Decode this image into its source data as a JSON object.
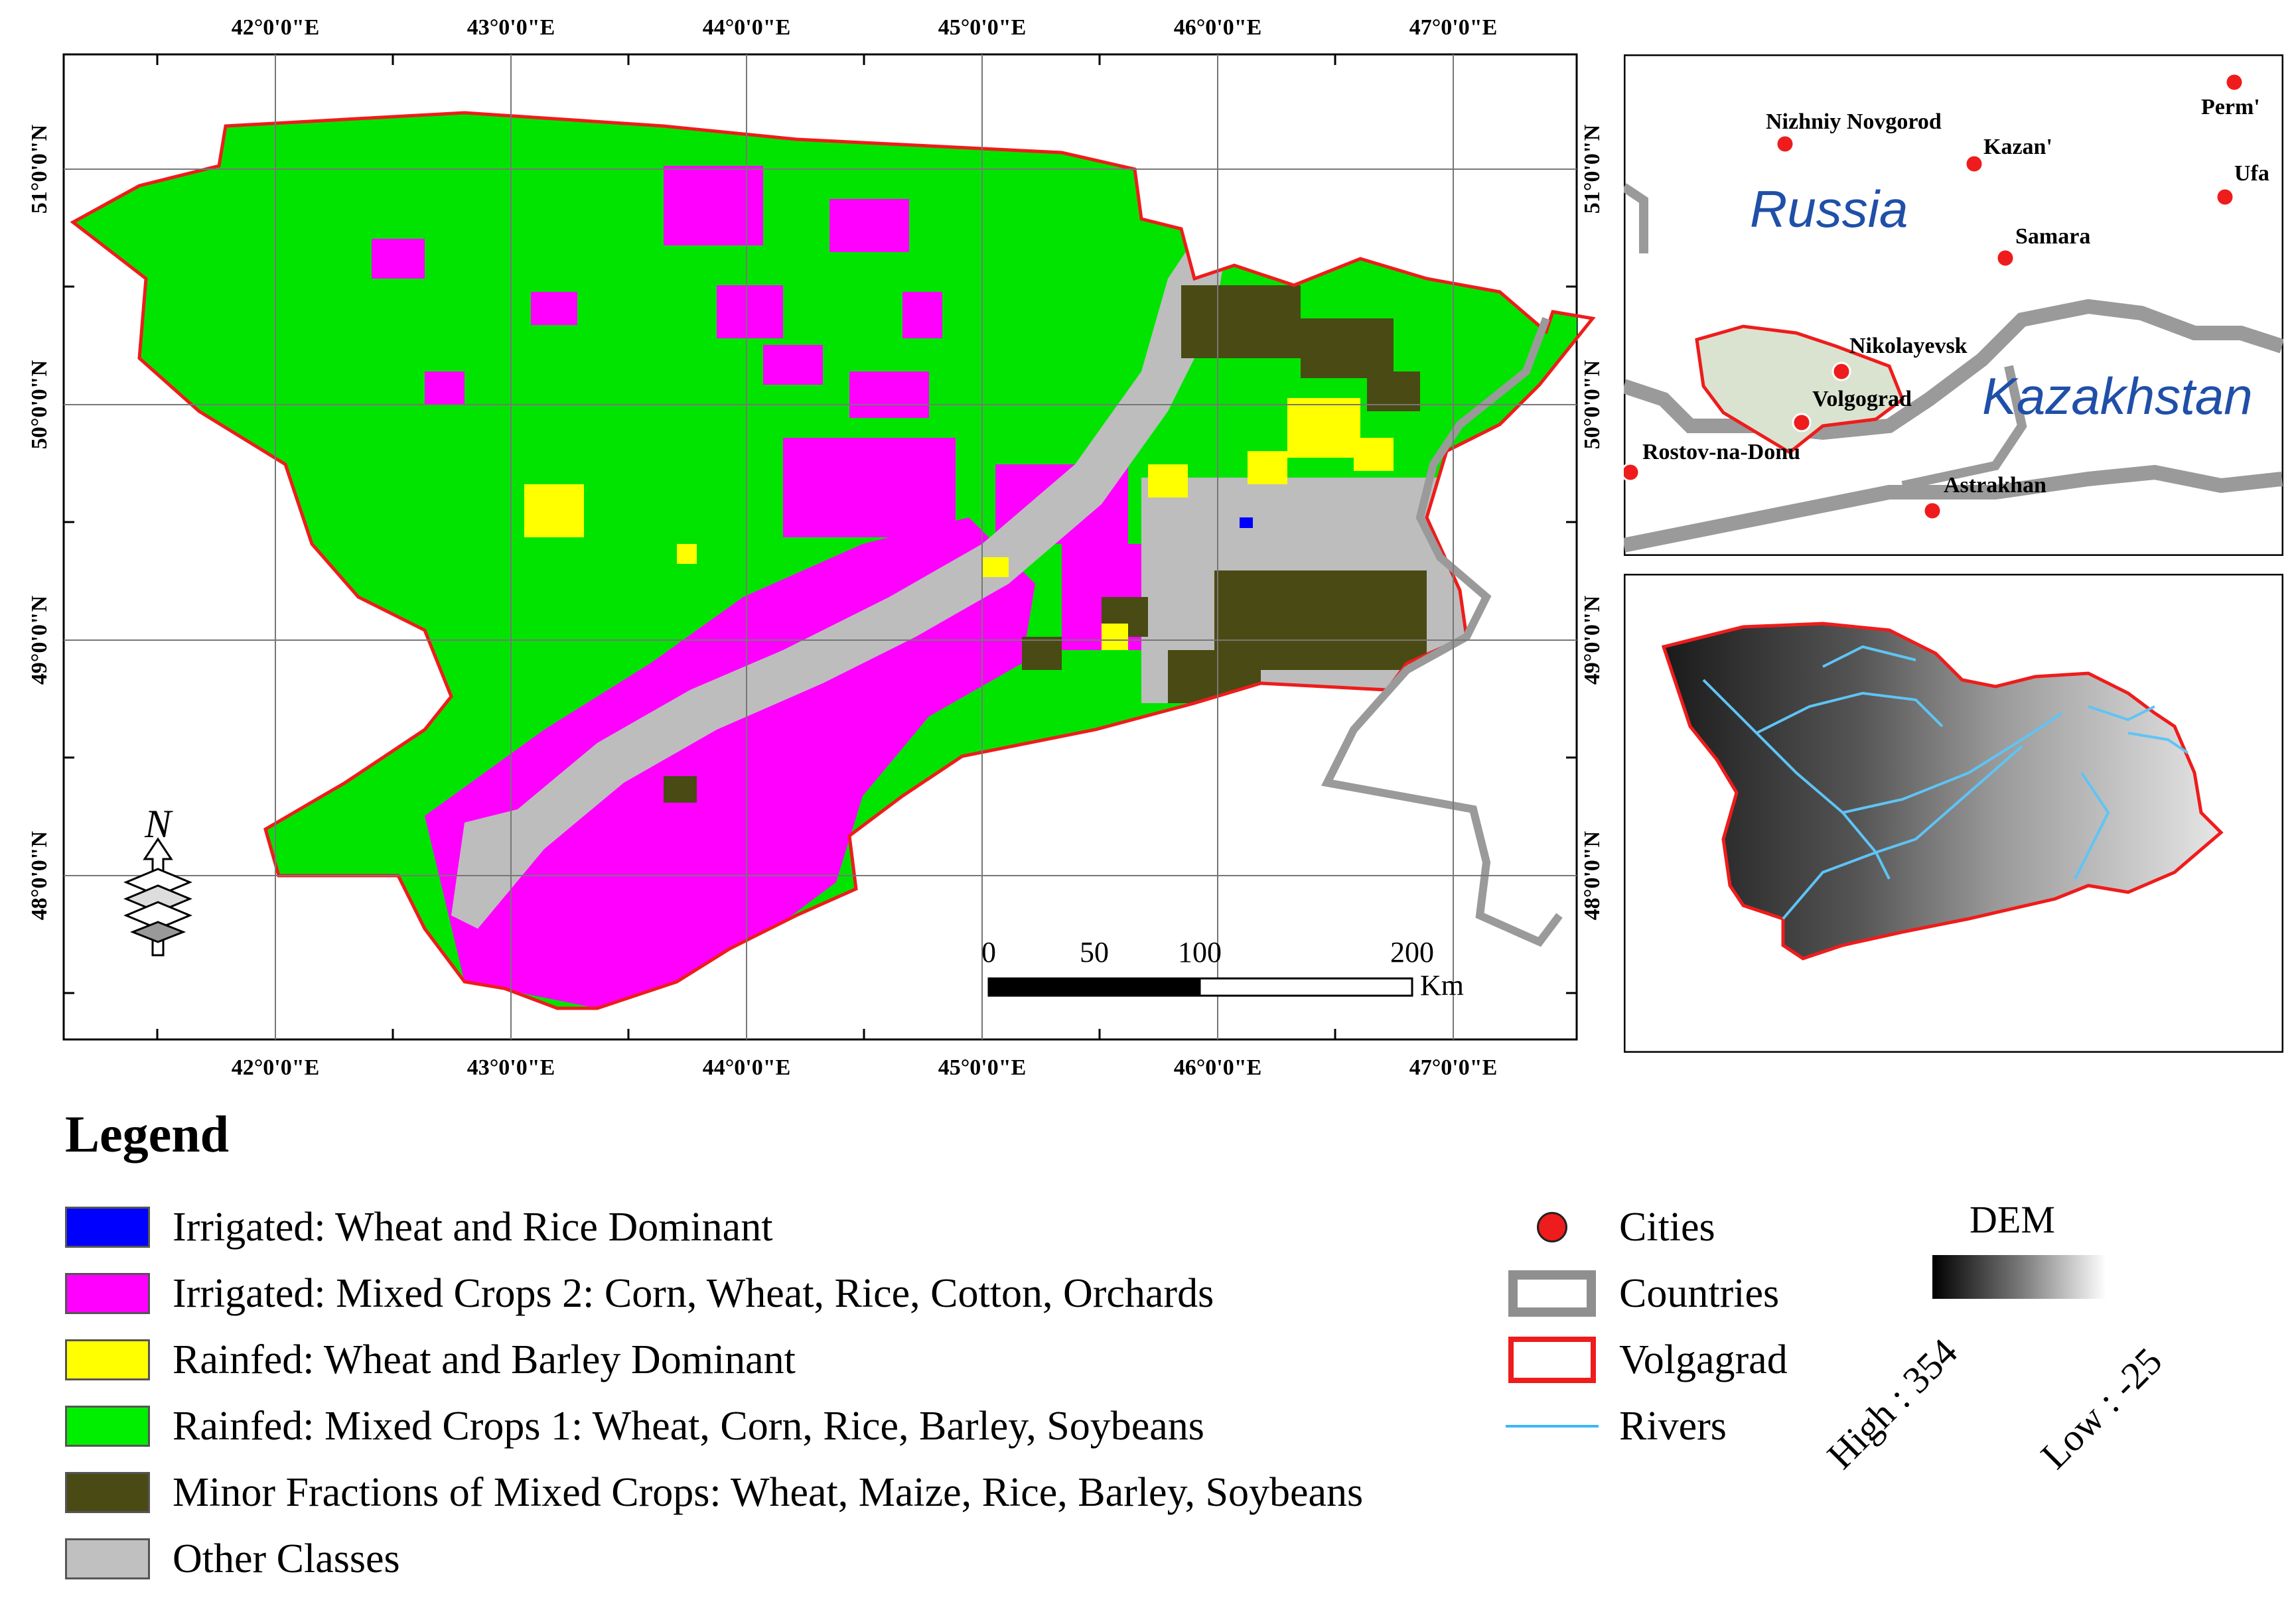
{
  "map": {
    "top_lon_labels": [
      "42°0'0\"E",
      "43°0'0\"E",
      "44°0'0\"E",
      "45°0'0\"E",
      "46°0'0\"E",
      "47°0'0\"E"
    ],
    "bottom_lon_labels": [
      "42°0'0\"E",
      "43°0'0\"E",
      "44°0'0\"E",
      "45°0'0\"E",
      "46°0'0\"E",
      "47°0'0\"E"
    ],
    "left_lat_labels": [
      "51°0'0\"N",
      "50°0'0\"N",
      "49°0'0\"N",
      "48°0'0\"N"
    ],
    "right_lat_labels": [
      "51°0'0\"N",
      "50°0'0\"N",
      "49°0'0\"N",
      "48°0'0\"N"
    ],
    "north_label": "N",
    "scale": {
      "ticks": [
        "0",
        "50",
        "100",
        "200"
      ],
      "unit": "Km"
    }
  },
  "inset_locator": {
    "countries": [
      "Russia",
      "Kazakhstan"
    ],
    "cities": [
      "Nizhniy Novgorod",
      "Kazan'",
      "Perm'",
      "Ufa",
      "Samara",
      "Nikolayevsk",
      "Volgograd",
      "Rostov-na-Donu",
      "Astrakhan"
    ]
  },
  "legend": {
    "title": "Legend",
    "items": [
      {
        "label": "Irrigated: Wheat and Rice Dominant",
        "color": "#0000ff"
      },
      {
        "label": "Irrigated: Mixed Crops 2: Corn, Wheat, Rice, Cotton, Orchards",
        "color": "#ff00ff"
      },
      {
        "label": "Rainfed: Wheat and Barley Dominant",
        "color": "#ffff00"
      },
      {
        "label": "Rainfed: Mixed Crops 1: Wheat, Corn, Rice, Barley, Soybeans",
        "color": "#00ee00"
      },
      {
        "label": "Minor Fractions of Mixed Crops: Wheat, Maize, Rice, Barley, Soybeans",
        "color": "#4a4a14"
      },
      {
        "label": "Other Classes",
        "color": "#c0c0c0"
      }
    ],
    "symbols": {
      "cities": "Cities",
      "countries": "Countries",
      "volgagrad": "Volgagrad",
      "rivers": "Rivers"
    },
    "dem": {
      "title": "DEM",
      "high": "High : 354",
      "low": "Low : -25"
    }
  }
}
